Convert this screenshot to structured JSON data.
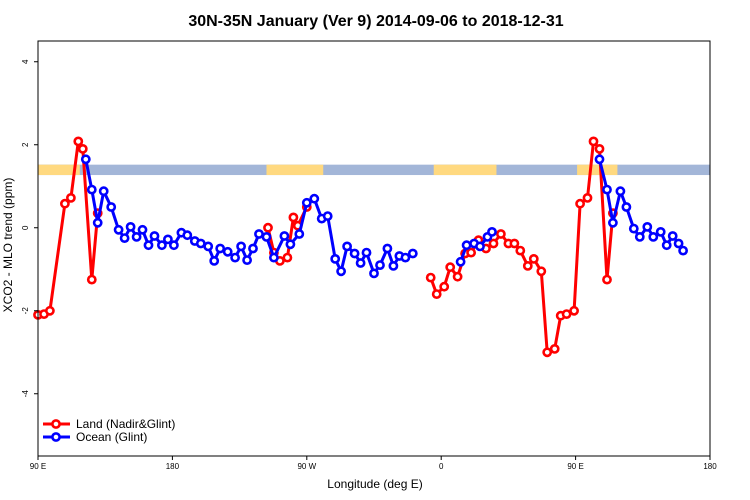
{
  "chart_data": {
    "type": "line",
    "title": "30N-35N January (Ver 9)   2014-09-06 to 2018-12-31",
    "xlabel": "Longitude (deg E)",
    "ylabel": "XCO2 - MLO trend (ppm)",
    "xlim": [
      90,
      540
    ],
    "ylim": [
      -5.5,
      4.5
    ],
    "x_ticks": [
      {
        "value": 90,
        "label": "90 E"
      },
      {
        "value": 180,
        "label": "180"
      },
      {
        "value": 270,
        "label": "90 W"
      },
      {
        "value": 360,
        "label": "0"
      },
      {
        "value": 450,
        "label": "90 E"
      },
      {
        "value": 540,
        "label": "180"
      }
    ],
    "y_ticks": [
      {
        "value": -4,
        "label": "-4"
      },
      {
        "value": -2,
        "label": "-2"
      },
      {
        "value": 0,
        "label": "0"
      },
      {
        "value": 2,
        "label": "2"
      },
      {
        "value": 4,
        "label": "4"
      }
    ],
    "grid": false,
    "legend": "bottom-left",
    "land_ocean_strip": {
      "y_range": [
        1.27,
        1.52
      ],
      "ocean_color": "#a3b6d8",
      "land_color": "#ffd980",
      "land_intervals": [
        [
          90,
          118
        ],
        [
          243,
          281
        ],
        [
          355,
          397
        ],
        [
          451,
          478
        ]
      ]
    },
    "series": [
      {
        "name": "Land (Nadir&Glint)",
        "color": "#ff0000",
        "segments": [
          [
            [
              90,
              -2.1
            ],
            [
              94,
              -2.08
            ],
            [
              98,
              -2.0
            ],
            [
              108,
              0.58
            ],
            [
              112,
              0.72
            ],
            [
              117,
              2.08
            ],
            [
              120,
              1.9
            ],
            [
              126,
              -1.25
            ],
            [
              130,
              0.35
            ]
          ],
          [
            [
              244,
              0.0
            ],
            [
              248,
              -0.6
            ],
            [
              252,
              -0.8
            ],
            [
              257,
              -0.72
            ],
            [
              261,
              0.25
            ],
            [
              264,
              0.05
            ],
            [
              270,
              0.5
            ]
          ],
          [
            [
              353,
              -1.2
            ],
            [
              357,
              -1.6
            ],
            [
              362,
              -1.42
            ],
            [
              366,
              -0.95
            ],
            [
              371,
              -1.18
            ],
            [
              376,
              -0.62
            ],
            [
              380,
              -0.6
            ],
            [
              385,
              -0.3
            ],
            [
              390,
              -0.5
            ],
            [
              395,
              -0.38
            ],
            [
              400,
              -0.15
            ],
            [
              405,
              -0.38
            ],
            [
              409,
              -0.38
            ],
            [
              413,
              -0.55
            ],
            [
              418,
              -0.92
            ],
            [
              422,
              -0.75
            ],
            [
              427,
              -1.05
            ],
            [
              431,
              -3.0
            ],
            [
              436,
              -2.92
            ],
            [
              440,
              -2.12
            ],
            [
              444,
              -2.08
            ],
            [
              449,
              -2.0
            ],
            [
              453,
              0.58
            ],
            [
              458,
              0.72
            ],
            [
              462,
              2.08
            ],
            [
              466,
              1.9
            ],
            [
              471,
              -1.25
            ],
            [
              475,
              0.35
            ]
          ]
        ]
      },
      {
        "name": "Ocean (Glint)",
        "color": "#0000ff",
        "segments": [
          [
            [
              122,
              1.65
            ],
            [
              126,
              0.92
            ],
            [
              130,
              0.12
            ],
            [
              134,
              0.88
            ],
            [
              139,
              0.5
            ],
            [
              144,
              -0.05
            ],
            [
              148,
              -0.25
            ],
            [
              152,
              0.02
            ],
            [
              156,
              -0.22
            ],
            [
              160,
              -0.05
            ],
            [
              164,
              -0.42
            ],
            [
              168,
              -0.2
            ],
            [
              173,
              -0.42
            ],
            [
              177,
              -0.28
            ],
            [
              181,
              -0.42
            ],
            [
              186,
              -0.12
            ],
            [
              190,
              -0.18
            ],
            [
              195,
              -0.32
            ],
            [
              199,
              -0.38
            ],
            [
              204,
              -0.45
            ],
            [
              208,
              -0.8
            ],
            [
              212,
              -0.5
            ],
            [
              217,
              -0.58
            ],
            [
              222,
              -0.72
            ],
            [
              226,
              -0.45
            ],
            [
              230,
              -0.78
            ],
            [
              234,
              -0.5
            ],
            [
              238,
              -0.15
            ],
            [
              243,
              -0.22
            ],
            [
              248,
              -0.72
            ],
            [
              255,
              -0.2
            ],
            [
              259,
              -0.4
            ],
            [
              265,
              -0.15
            ],
            [
              270,
              0.6
            ],
            [
              275,
              0.7
            ],
            [
              280,
              0.22
            ],
            [
              284,
              0.28
            ],
            [
              289,
              -0.75
            ],
            [
              293,
              -1.05
            ],
            [
              297,
              -0.45
            ],
            [
              302,
              -0.62
            ],
            [
              306,
              -0.85
            ],
            [
              310,
              -0.6
            ],
            [
              315,
              -1.1
            ],
            [
              319,
              -0.9
            ],
            [
              324,
              -0.5
            ],
            [
              328,
              -0.92
            ],
            [
              332,
              -0.68
            ],
            [
              336,
              -0.72
            ],
            [
              341,
              -0.62
            ]
          ],
          [
            [
              373,
              -0.82
            ],
            [
              377,
              -0.42
            ],
            [
              382,
              -0.38
            ],
            [
              386,
              -0.45
            ],
            [
              391,
              -0.22
            ],
            [
              394,
              -0.1
            ]
          ],
          [
            [
              466,
              1.65
            ],
            [
              471,
              0.92
            ],
            [
              475,
              0.12
            ],
            [
              480,
              0.88
            ],
            [
              484,
              0.5
            ],
            [
              489,
              -0.02
            ],
            [
              493,
              -0.22
            ],
            [
              498,
              0.02
            ],
            [
              502,
              -0.22
            ],
            [
              507,
              -0.1
            ],
            [
              511,
              -0.42
            ],
            [
              515,
              -0.2
            ],
            [
              519,
              -0.38
            ],
            [
              522,
              -0.55
            ]
          ]
        ]
      }
    ]
  }
}
